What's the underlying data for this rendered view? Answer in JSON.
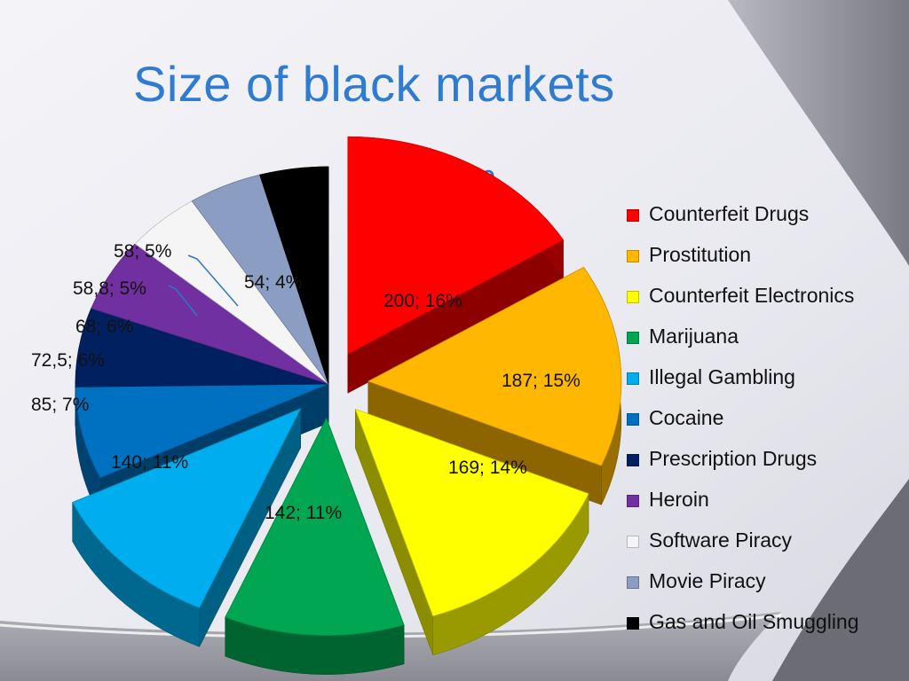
{
  "slide": {
    "title": "Size of black markets"
  },
  "chart_data": {
    "type": "pie",
    "title": "market value (Billion USD)",
    "title_lines": [
      "market value",
      "(Billion USD)"
    ],
    "legend_position": "right",
    "style": "3d-exploded",
    "categories": [
      "Counterfeit Drugs",
      "Prostitution",
      "Counterfeit Electronics",
      "Marijuana",
      "Illegal Gambling",
      "Cocaine",
      "Prescription Drugs",
      "Heroin",
      "Software Piracy",
      "Movie Piracy",
      "Gas and Oil Smuggling"
    ],
    "values": [
      200,
      187,
      169,
      142,
      140,
      85,
      72.5,
      68,
      58.8,
      58,
      54
    ],
    "percentages": [
      16,
      15,
      14,
      11,
      11,
      7,
      6,
      6,
      5,
      5,
      4
    ],
    "data_labels": [
      "200; 16%",
      "187; 15%",
      "169; 14%",
      "142; 11%",
      "140; 11%",
      "85; 7%",
      "72,5; 6%",
      "68; 6%",
      "58,8; 5%",
      "58; 5%",
      "54; 4%"
    ],
    "colors": [
      "#ff0000",
      "#ffb700",
      "#ffff00",
      "#00a651",
      "#00aeef",
      "#0070c0",
      "#002060",
      "#7030a0",
      "#f5f5f5",
      "#8b9dc3",
      "#000000"
    ]
  }
}
